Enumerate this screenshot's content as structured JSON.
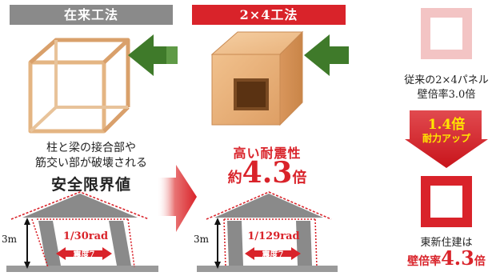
{
  "left": {
    "header": "在来工法",
    "desc_line1": "柱と梁の接合部や",
    "desc_line2": "筋交い部が破壊される",
    "desc_emph": "安全限界値",
    "height_label": "3m",
    "drift_label": "1/30rad",
    "quake_label": "震度7"
  },
  "middle": {
    "header": "2×4工法",
    "claim": "高い耐震性",
    "ratio_prefix": "約",
    "ratio_value": "4.3",
    "ratio_suffix": "倍",
    "height_label": "3m",
    "drift_label": "1/129rad",
    "quake_label": "震度7"
  },
  "right": {
    "before_line1": "従来の2×4パネル",
    "before_line2": "壁倍率3.0倍",
    "upgrade_value": "1.4倍",
    "upgrade_label": "耐力アップ",
    "after_line1": "東新住建は",
    "after_prefix": "壁倍率",
    "after_value": "4.3",
    "after_suffix": "倍"
  },
  "colors": {
    "red": "#d9232a",
    "gray_header": "#8a8a8a",
    "green_arrow": "#3f7a2a",
    "wood": "#e6b07a",
    "pink_frame": "#f3c4c4",
    "yellow_text": "#ffe600"
  }
}
